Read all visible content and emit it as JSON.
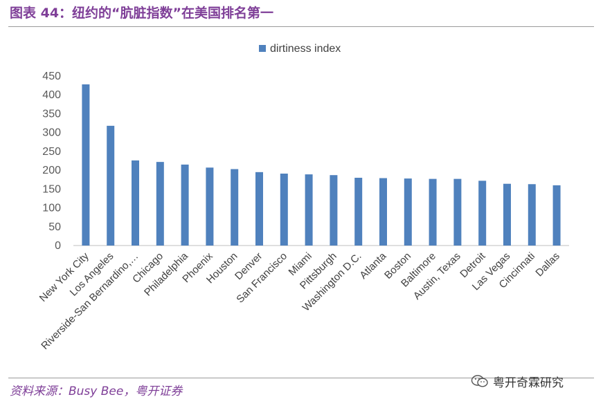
{
  "header": {
    "title": "图表 44：纽约的“肮脏指数”在美国排名第一"
  },
  "footer": {
    "source": "资料来源：Busy Bee，粤开证券",
    "watermark": "粤开奇霖研究"
  },
  "colors": {
    "bar": "#4f81bd",
    "accent": "#7f3f98"
  },
  "icons": {
    "watermark": "wechat-icon"
  },
  "chart_data": {
    "type": "bar",
    "categories": [
      "New York City",
      "Los Angeles",
      "Riverside-San Bernardino,…",
      "Chicago",
      "Philadelphia",
      "Phoenix",
      "Houston",
      "Denver",
      "San Francisco",
      "Miami",
      "Pittsburgh",
      "Washington  D.C.",
      "Atlanta",
      "Boston",
      "Baltimore",
      "Austin, Texas",
      "Detroit",
      "Las Vegas",
      "Cincinnati",
      "Dallas"
    ],
    "series": [
      {
        "name": "dirtiness index",
        "values": [
          428,
          318,
          226,
          222,
          215,
          207,
          203,
          195,
          191,
          189,
          187,
          180,
          179,
          178,
          177,
          177,
          172,
          164,
          163,
          160
        ]
      }
    ],
    "ylim": [
      0,
      450
    ],
    "yticks": [
      0,
      50,
      100,
      150,
      200,
      250,
      300,
      350,
      400,
      450
    ],
    "grid": false,
    "legend": "top-center"
  }
}
